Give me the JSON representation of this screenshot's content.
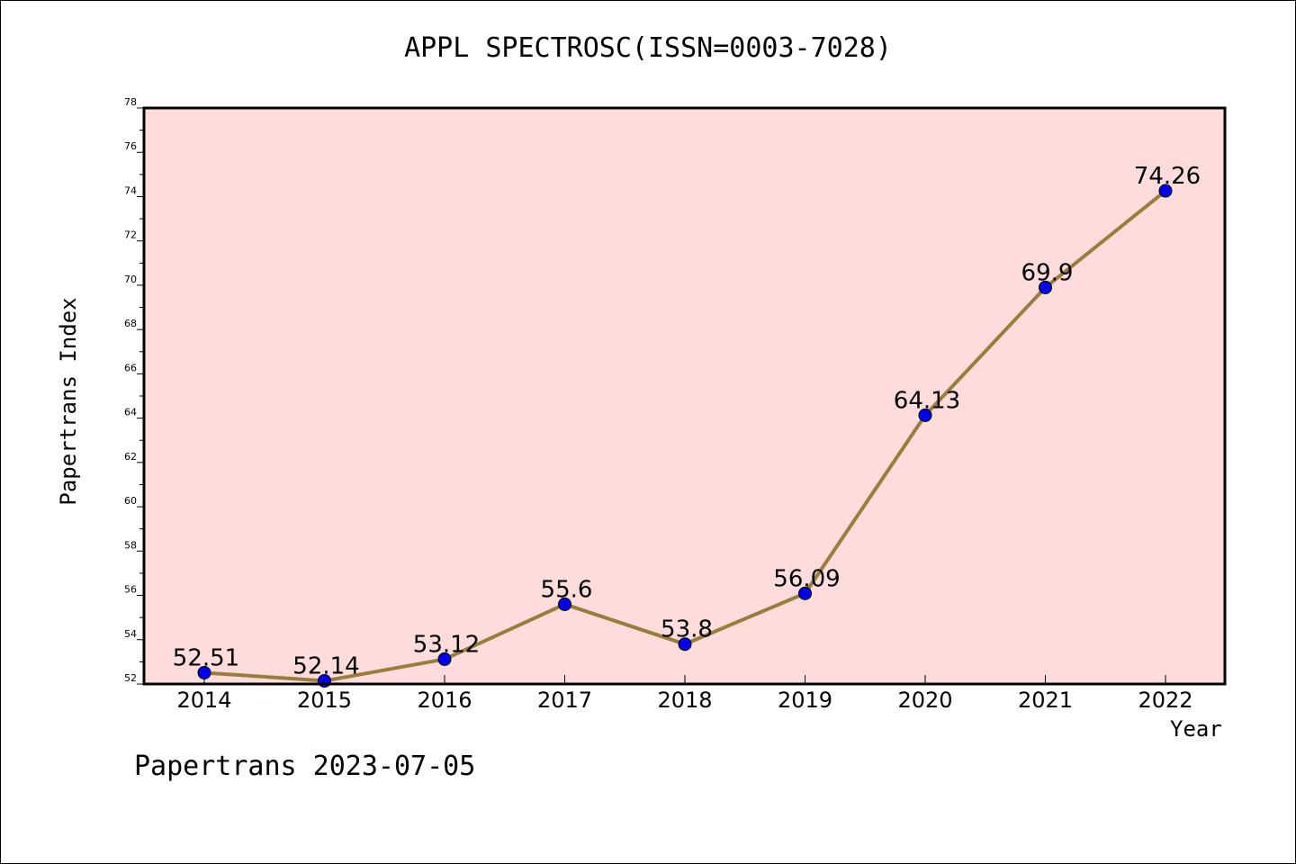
{
  "chart_data": {
    "type": "line",
    "title": "APPL SPECTROSC(ISSN=0003-7028)",
    "xlabel": "Year",
    "ylabel": "Papertrans Index",
    "categories": [
      "2014",
      "2015",
      "2016",
      "2017",
      "2018",
      "2019",
      "2020",
      "2021",
      "2022"
    ],
    "series": [
      {
        "values": [
          52.51,
          52.14,
          53.12,
          55.6,
          53.8,
          56.09,
          64.13,
          69.9,
          74.26
        ]
      }
    ],
    "data_labels": [
      "52.51",
      "52.14",
      "53.12",
      "55.6",
      "53.8",
      "56.09",
      "64.13",
      "69.9",
      "74.26"
    ],
    "ylim": [
      52,
      78
    ],
    "yticks": [
      52,
      54,
      56,
      58,
      60,
      62,
      64,
      66,
      68,
      70,
      72,
      74,
      76,
      78
    ],
    "grid": false,
    "legend": "none",
    "colors": {
      "plot_background": "#fddcdb",
      "line": "#9a7d3c",
      "marker": "#0000ee"
    }
  },
  "footer": "Papertrans 2023-07-05"
}
